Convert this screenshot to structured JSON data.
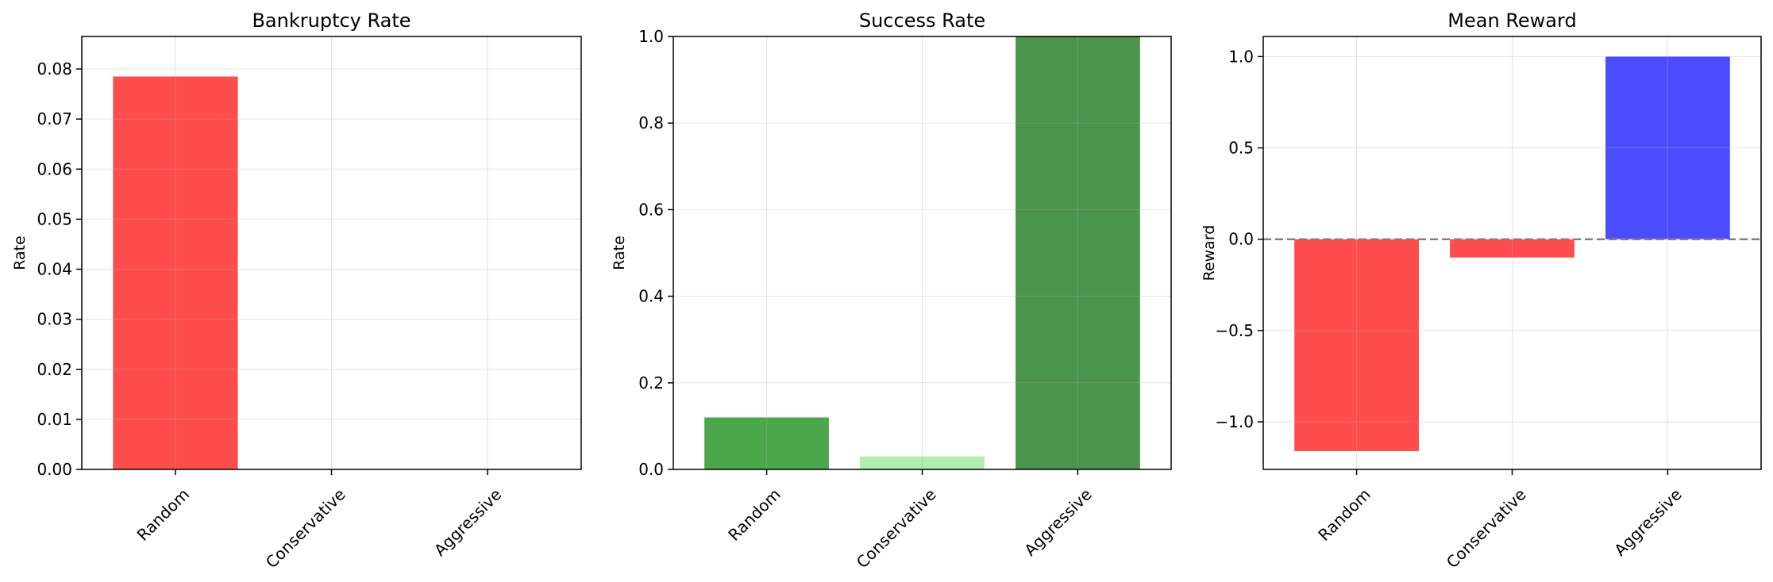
{
  "chart_data": [
    {
      "type": "bar",
      "title": "Bankruptcy Rate",
      "xlabel": "",
      "ylabel": "Rate",
      "categories": [
        "Random",
        "Conservative",
        "Aggressive"
      ],
      "values": [
        0.0785,
        0.0,
        0.0
      ],
      "colors": [
        "#ff4c4c",
        "#ff4c4c",
        "#ff4c4c"
      ],
      "ylim": [
        0,
        0.0865
      ],
      "yticks": [
        0.0,
        0.01,
        0.02,
        0.03,
        0.04,
        0.05,
        0.06,
        0.07,
        0.08
      ],
      "ytick_labels": [
        "0.00",
        "0.01",
        "0.02",
        "0.03",
        "0.04",
        "0.05",
        "0.06",
        "0.07",
        "0.08"
      ],
      "grid": true,
      "baseline": null
    },
    {
      "type": "bar",
      "title": "Success Rate",
      "xlabel": "",
      "ylabel": "Rate",
      "categories": [
        "Random",
        "Conservative",
        "Aggressive"
      ],
      "values": [
        0.12,
        0.03,
        1.0
      ],
      "colors": [
        "#4ca64c",
        "#aeeeae",
        "#4b944b"
      ],
      "ylim": [
        0,
        1.0
      ],
      "yticks": [
        0.0,
        0.2,
        0.4,
        0.6,
        0.8,
        1.0
      ],
      "ytick_labels": [
        "0.0",
        "0.2",
        "0.4",
        "0.6",
        "0.8",
        "1.0"
      ],
      "grid": true,
      "baseline": null
    },
    {
      "type": "bar",
      "title": "Mean Reward",
      "xlabel": "",
      "ylabel": "Reward",
      "categories": [
        "Random",
        "Conservative",
        "Aggressive"
      ],
      "values": [
        -1.16,
        -0.1,
        1.0
      ],
      "colors": [
        "#ff4c4c",
        "#ff4c4c",
        "#4c4cff"
      ],
      "ylim": [
        -1.26,
        1.11
      ],
      "yticks": [
        -1.0,
        -0.5,
        0.0,
        0.5,
        1.0
      ],
      "ytick_labels": [
        "−1.0",
        "−0.5",
        "0.0",
        "0.5",
        "1.0"
      ],
      "grid": true,
      "baseline": {
        "y": 0.0,
        "style": "dashed",
        "color": "#808080"
      }
    }
  ]
}
